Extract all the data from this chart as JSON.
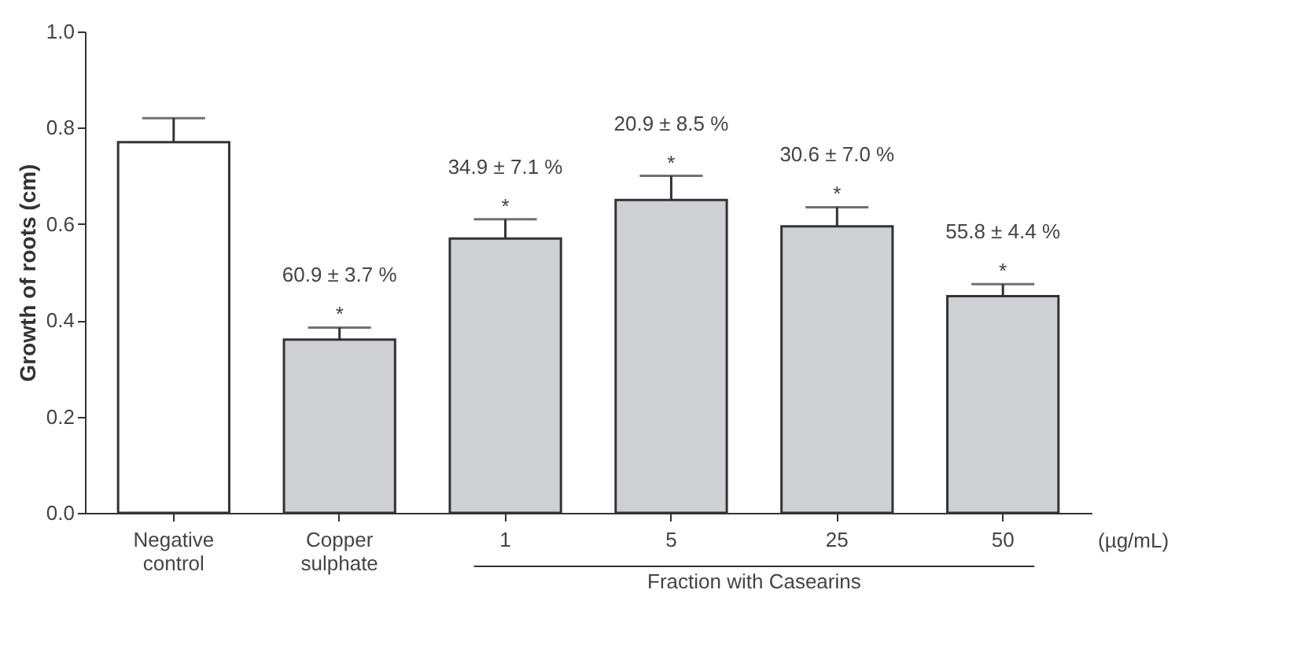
{
  "chart_data": {
    "type": "bar",
    "ylabel": "Growth of roots (cm)",
    "categories": [
      "Negative control",
      "Copper sulphate",
      "1",
      "5",
      "25",
      "50"
    ],
    "values": [
      0.77,
      0.36,
      0.57,
      0.65,
      0.595,
      0.45
    ],
    "errors": [
      0.05,
      0.025,
      0.04,
      0.05,
      0.04,
      0.025
    ],
    "colors": [
      "#ffffff",
      "#cfd0d4",
      "#cfd0d4",
      "#cfd0d4",
      "#cfd0d4",
      "#cfd0d4"
    ],
    "ylim": [
      0,
      1
    ],
    "yticks": [
      {
        "value": 0,
        "label": "0.0"
      },
      {
        "value": 0.2,
        "label": "0.2"
      },
      {
        "value": 0.4,
        "label": "0.4"
      },
      {
        "value": 0.6,
        "label": "0.6"
      },
      {
        "value": 0.8,
        "label": "0.8"
      },
      {
        "value": 1,
        "label": "1.0"
      }
    ],
    "grid": false,
    "annotations": [
      "60.9 ± 3.7 %",
      "34.9 ± 7.1 %",
      "20.9 ± 8.5 %",
      "30.6 ± 7.0 %",
      "55.8 ± 4.4 %",
      "*",
      "*",
      "*",
      "*",
      "*",
      "(µg/mL)",
      "Fraction with Casearins"
    ]
  }
}
